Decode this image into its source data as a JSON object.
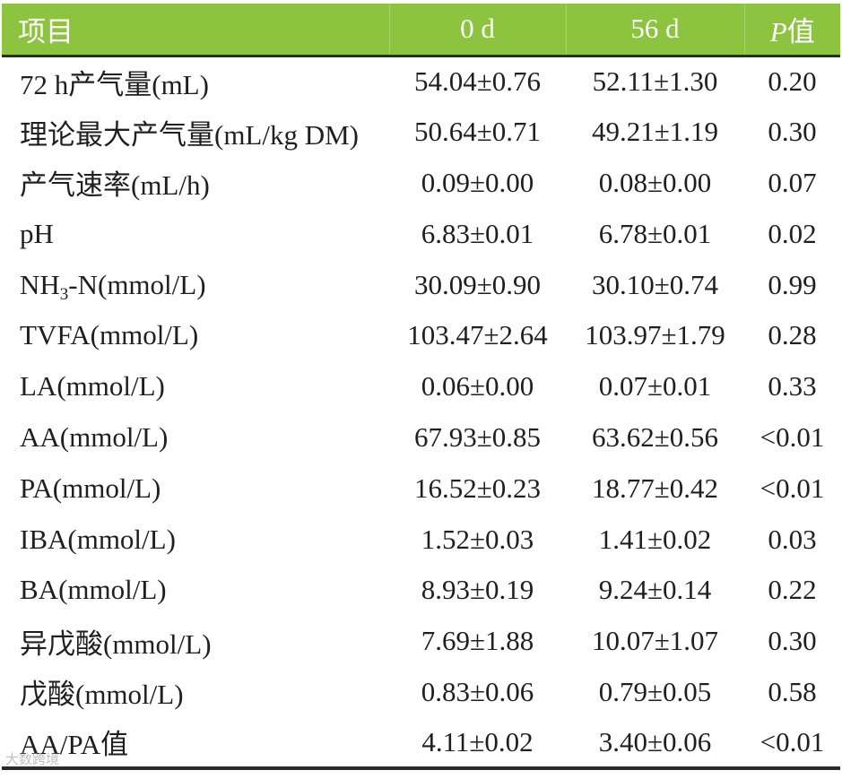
{
  "header": {
    "item": "项目",
    "day0": "0 d",
    "day56": "56 d",
    "p_letter": "P",
    "p_suffix": "值"
  },
  "rows": [
    {
      "item": "72 h产气量(mL)",
      "d0": "54.04±0.76",
      "d56": "52.11±1.30",
      "p": "0.20"
    },
    {
      "item": "理论最大产气量(mL/kg DM)",
      "d0": "50.64±0.71",
      "d56": "49.21±1.19",
      "p": "0.30"
    },
    {
      "item": "产气速率(mL/h)",
      "d0": "0.09±0.00",
      "d56": "0.08±0.00",
      "p": "0.07"
    },
    {
      "item": "pH",
      "d0": "6.83±0.01",
      "d56": "6.78±0.01",
      "p": "0.02"
    },
    {
      "item_prefix": "NH",
      "item_sub": "3",
      "item_suffix": "-N(mmol/L)",
      "d0": "30.09±0.90",
      "d56": "30.10±0.74",
      "p": "0.99"
    },
    {
      "item": "TVFA(mmol/L)",
      "d0": "103.47±2.64",
      "d56": "103.97±1.79",
      "p": "0.28"
    },
    {
      "item": "LA(mmol/L)",
      "d0": "0.06±0.00",
      "d56": "0.07±0.01",
      "p": "0.33"
    },
    {
      "item": "AA(mmol/L)",
      "d0": "67.93±0.85",
      "d56": "63.62±0.56",
      "p": "<0.01"
    },
    {
      "item": "PA(mmol/L)",
      "d0": "16.52±0.23",
      "d56": "18.77±0.42",
      "p": "<0.01"
    },
    {
      "item": "IBA(mmol/L)",
      "d0": "1.52±0.03",
      "d56": "1.41±0.02",
      "p": "0.03"
    },
    {
      "item": "BA(mmol/L)",
      "d0": "8.93±0.19",
      "d56": "9.24±0.14",
      "p": "0.22"
    },
    {
      "item": "异戊酸(mmol/L)",
      "d0": "7.69±1.88",
      "d56": "10.07±1.07",
      "p": "0.30"
    },
    {
      "item": "戊酸(mmol/L)",
      "d0": "0.83±0.06",
      "d56": "0.79±0.05",
      "p": "0.58"
    },
    {
      "item": "AA/PA值",
      "d0": "4.11±0.02",
      "d56": "3.40±0.06",
      "p": "<0.01"
    }
  ],
  "watermark": "大数跨境",
  "colors": {
    "header_bg": "#8cc43f",
    "header_text": "#ffffff",
    "body_text": "#1f1f1f",
    "rule": "#2a2a2a"
  }
}
